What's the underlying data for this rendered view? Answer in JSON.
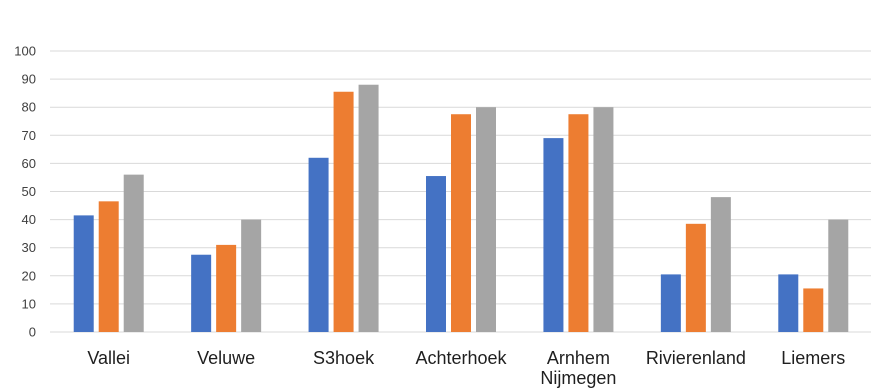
{
  "chart_data": {
    "type": "bar",
    "categories": [
      "Vallei",
      "Veluwe",
      "S3hoek",
      "Achterhoek",
      "Arnhem Nijmegen",
      "Rivierenland",
      "Liemers"
    ],
    "category_lines": [
      [
        "Vallei"
      ],
      [
        "Veluwe"
      ],
      [
        "S3hoek"
      ],
      [
        "Achterhoek"
      ],
      [
        "Arnhem",
        "Nijmegen"
      ],
      [
        "Rivierenland"
      ],
      [
        "Liemers"
      ]
    ],
    "series": [
      {
        "color": "#4472C4",
        "values": [
          41.5,
          27.5,
          62,
          55.5,
          69,
          20.5,
          20.5
        ]
      },
      {
        "color": "#ED7D31",
        "values": [
          46.5,
          31,
          85.5,
          77.5,
          77.5,
          38.5,
          15.5
        ]
      },
      {
        "color": "#A5A5A5",
        "values": [
          56,
          40,
          88,
          80,
          80,
          48,
          40
        ]
      }
    ],
    "y_ticks": [
      "0",
      "10",
      "20",
      "30",
      "40",
      "50",
      "60",
      "70",
      "80",
      "90",
      "100"
    ],
    "ylim": [
      0,
      100
    ],
    "grid": true,
    "gridline_color": "#D9D9D9"
  }
}
